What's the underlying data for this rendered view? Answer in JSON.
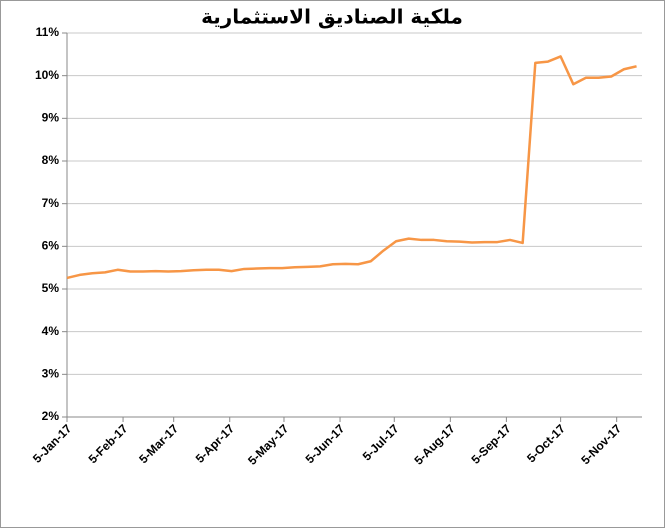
{
  "chart_data": {
    "type": "line",
    "title": "ملكية الصناديق الاستثمارية",
    "x": [
      "2017-01-05",
      "2017-01-12",
      "2017-01-19",
      "2017-01-26",
      "2017-02-02",
      "2017-02-09",
      "2017-02-16",
      "2017-02-23",
      "2017-03-02",
      "2017-03-09",
      "2017-03-16",
      "2017-03-23",
      "2017-03-30",
      "2017-04-06",
      "2017-04-13",
      "2017-04-20",
      "2017-04-27",
      "2017-05-04",
      "2017-05-11",
      "2017-05-18",
      "2017-05-25",
      "2017-06-01",
      "2017-06-08",
      "2017-06-15",
      "2017-06-22",
      "2017-06-29",
      "2017-07-06",
      "2017-07-13",
      "2017-07-20",
      "2017-07-27",
      "2017-08-03",
      "2017-08-10",
      "2017-08-17",
      "2017-08-24",
      "2017-08-31",
      "2017-09-07",
      "2017-09-14",
      "2017-09-21",
      "2017-09-28",
      "2017-10-05",
      "2017-10-12",
      "2017-10-19",
      "2017-10-26",
      "2017-11-02",
      "2017-11-09",
      "2017-11-16"
    ],
    "values": [
      5.26,
      5.33,
      5.37,
      5.39,
      5.45,
      5.41,
      5.41,
      5.42,
      5.41,
      5.42,
      5.44,
      5.45,
      5.45,
      5.42,
      5.47,
      5.48,
      5.49,
      5.49,
      5.51,
      5.52,
      5.53,
      5.58,
      5.59,
      5.58,
      5.65,
      5.9,
      6.12,
      6.18,
      6.15,
      6.15,
      6.12,
      6.11,
      6.09,
      6.1,
      6.1,
      6.15,
      6.08,
      10.3,
      10.33,
      10.45,
      9.8,
      9.95,
      9.95,
      9.98,
      10.15,
      10.22
    ],
    "color": "#f79646",
    "xlim": [
      "2017-01-05",
      "2017-11-19"
    ],
    "xticks": [
      {
        "value": "2017-01-05",
        "label": "5-Jan-17"
      },
      {
        "value": "2017-02-05",
        "label": "5-Feb-17"
      },
      {
        "value": "2017-03-05",
        "label": "5-Mar-17"
      },
      {
        "value": "2017-04-05",
        "label": "5-Apr-17"
      },
      {
        "value": "2017-05-05",
        "label": "5-May-17"
      },
      {
        "value": "2017-06-05",
        "label": "5-Jun-17"
      },
      {
        "value": "2017-07-05",
        "label": "5-Jul-17"
      },
      {
        "value": "2017-08-05",
        "label": "5-Aug-17"
      },
      {
        "value": "2017-09-05",
        "label": "5-Sep-17"
      },
      {
        "value": "2017-10-05",
        "label": "5-Oct-17"
      },
      {
        "value": "2017-11-05",
        "label": "5-Nov-17"
      }
    ],
    "ylim": [
      2,
      11
    ],
    "yticks": [
      {
        "value": 2,
        "label": "2%"
      },
      {
        "value": 3,
        "label": "3%"
      },
      {
        "value": 4,
        "label": "4%"
      },
      {
        "value": 5,
        "label": "5%"
      },
      {
        "value": 6,
        "label": "6%"
      },
      {
        "value": 7,
        "label": "7%"
      },
      {
        "value": 8,
        "label": "8%"
      },
      {
        "value": 9,
        "label": "9%"
      },
      {
        "value": 10,
        "label": "10%"
      },
      {
        "value": 11,
        "label": "11%"
      }
    ],
    "grid": true
  }
}
